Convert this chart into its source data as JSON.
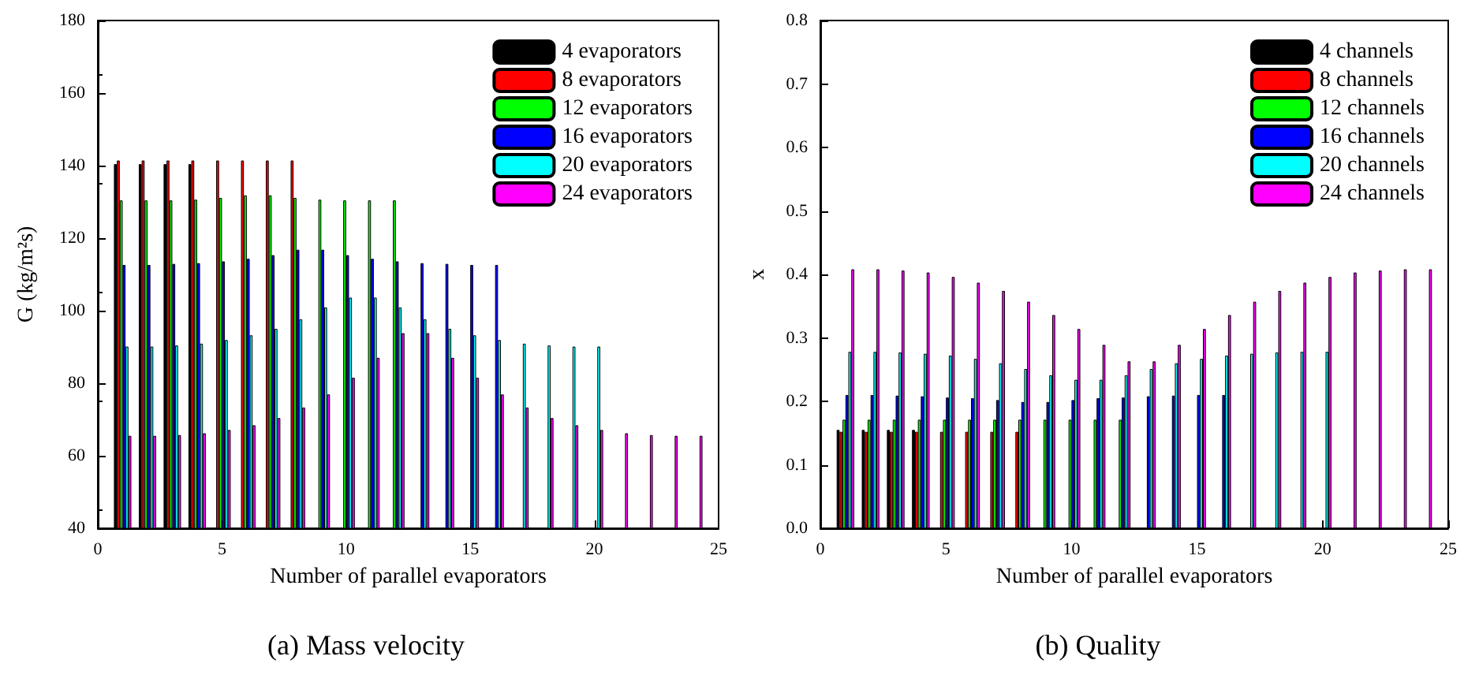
{
  "chart_data": [
    {
      "type": "bar",
      "title": "(a) Mass velocity",
      "xlabel": "Number of parallel evaporators",
      "ylabel": "G (kg/m²s)",
      "xlim": [
        0,
        25
      ],
      "xticks": [
        0,
        5,
        10,
        15,
        20,
        25
      ],
      "ylim": [
        40,
        180
      ],
      "yticks": [
        40,
        60,
        80,
        100,
        120,
        140,
        160,
        180
      ],
      "legend": "top right",
      "series": [
        {
          "name": "4 evaporators",
          "color": "#000000",
          "x": [
            1,
            2,
            3,
            4
          ],
          "values": [
            140.4,
            140.4,
            140.4,
            140.4
          ]
        },
        {
          "name": "8 evaporators",
          "color": "#ff0000",
          "x": [
            1,
            2,
            3,
            4,
            5,
            6,
            7,
            8
          ],
          "values": [
            141.4,
            141.4,
            141.4,
            141.4,
            141.4,
            141.4,
            141.4,
            141.4
          ]
        },
        {
          "name": "12 evaporators",
          "color": "#00ff00",
          "x": [
            1,
            2,
            3,
            4,
            5,
            6,
            7,
            8,
            9,
            10,
            11,
            12
          ],
          "values": [
            130.4,
            130.4,
            130.4,
            130.6,
            131.1,
            131.8,
            131.8,
            131.1,
            130.6,
            130.4,
            130.4,
            130.4
          ]
        },
        {
          "name": "16 evaporators",
          "color": "#0000ff",
          "x": [
            1,
            2,
            3,
            4,
            5,
            6,
            7,
            8,
            9,
            10,
            11,
            12,
            13,
            14,
            15,
            16
          ],
          "values": [
            112.6,
            112.6,
            112.9,
            113.1,
            113.6,
            114.3,
            115.3,
            116.8,
            116.8,
            115.3,
            114.3,
            113.6,
            113.1,
            112.9,
            112.6,
            112.6
          ]
        },
        {
          "name": "20 evaporators",
          "color": "#00ffff",
          "x": [
            1,
            2,
            3,
            4,
            5,
            6,
            7,
            8,
            9,
            10,
            11,
            12,
            13,
            14,
            15,
            16,
            17,
            18,
            19,
            20
          ],
          "values": [
            90.1,
            90.1,
            90.4,
            90.9,
            91.9,
            93.2,
            95.0,
            97.6,
            100.9,
            103.6,
            103.6,
            100.9,
            97.6,
            95.0,
            93.2,
            91.9,
            90.9,
            90.4,
            90.1,
            90.1
          ]
        },
        {
          "name": "24 evaporators",
          "color": "#ff00ff",
          "x": [
            1,
            2,
            3,
            4,
            5,
            6,
            7,
            8,
            9,
            10,
            11,
            12,
            13,
            14,
            15,
            16,
            17,
            18,
            19,
            20,
            21,
            22,
            23,
            24
          ],
          "values": [
            65.5,
            65.5,
            65.7,
            66.2,
            67.1,
            68.4,
            70.4,
            73.3,
            76.9,
            81.5,
            87.0,
            93.8,
            93.8,
            87.0,
            81.5,
            76.9,
            73.3,
            70.4,
            68.4,
            67.1,
            66.2,
            65.7,
            65.5,
            65.5
          ]
        }
      ]
    },
    {
      "type": "bar",
      "title": "(b) Quality",
      "xlabel": "Number of parallel evaporators",
      "ylabel": "x",
      "xlim": [
        0,
        25
      ],
      "xticks": [
        0,
        5,
        10,
        15,
        20,
        25
      ],
      "ylim": [
        0,
        0.8
      ],
      "yticks": [
        {
          "value": 0,
          "label": "0.0"
        },
        0.1,
        0.2,
        0.3,
        0.4,
        0.5,
        0.6,
        0.7,
        0.8
      ],
      "legend": "top right",
      "series": [
        {
          "name": "4 channels",
          "color": "#000000",
          "x": [
            1,
            2,
            3,
            4
          ],
          "values": [
            0.155,
            0.155,
            0.155,
            0.155
          ]
        },
        {
          "name": "8 channels",
          "color": "#ff0000",
          "x": [
            1,
            2,
            3,
            4,
            5,
            6,
            7,
            8
          ],
          "values": [
            0.152,
            0.152,
            0.152,
            0.152,
            0.152,
            0.152,
            0.152,
            0.152
          ]
        },
        {
          "name": "12 channels",
          "color": "#00ff00",
          "x": [
            1,
            2,
            3,
            4,
            5,
            6,
            7,
            8,
            9,
            10,
            11,
            12
          ],
          "values": [
            0.171,
            0.171,
            0.171,
            0.171,
            0.171,
            0.171,
            0.171,
            0.171,
            0.171,
            0.171,
            0.171,
            0.171
          ]
        },
        {
          "name": "16 channels",
          "color": "#0000ff",
          "x": [
            1,
            2,
            3,
            4,
            5,
            6,
            7,
            8,
            9,
            10,
            11,
            12,
            13,
            14,
            15,
            16
          ],
          "values": [
            0.21,
            0.21,
            0.209,
            0.208,
            0.206,
            0.205,
            0.202,
            0.199,
            0.199,
            0.202,
            0.205,
            0.206,
            0.208,
            0.209,
            0.21,
            0.21
          ]
        },
        {
          "name": "20 channels",
          "color": "#00ffff",
          "x": [
            1,
            2,
            3,
            4,
            5,
            6,
            7,
            8,
            9,
            10,
            11,
            12,
            13,
            14,
            15,
            16,
            17,
            18,
            19,
            20
          ],
          "values": [
            0.278,
            0.278,
            0.277,
            0.275,
            0.272,
            0.267,
            0.26,
            0.251,
            0.241,
            0.234,
            0.234,
            0.241,
            0.251,
            0.26,
            0.267,
            0.272,
            0.275,
            0.277,
            0.278,
            0.278
          ]
        },
        {
          "name": "24 channels",
          "color": "#ff00ff",
          "x": [
            1,
            2,
            3,
            4,
            5,
            6,
            7,
            8,
            9,
            10,
            11,
            12,
            13,
            14,
            15,
            16,
            17,
            18,
            19,
            20,
            21,
            22,
            23,
            24
          ],
          "values": [
            0.408,
            0.408,
            0.406,
            0.403,
            0.396,
            0.387,
            0.374,
            0.357,
            0.336,
            0.314,
            0.289,
            0.263,
            0.263,
            0.289,
            0.314,
            0.336,
            0.357,
            0.374,
            0.387,
            0.396,
            0.403,
            0.406,
            0.408,
            0.408
          ]
        }
      ]
    }
  ]
}
